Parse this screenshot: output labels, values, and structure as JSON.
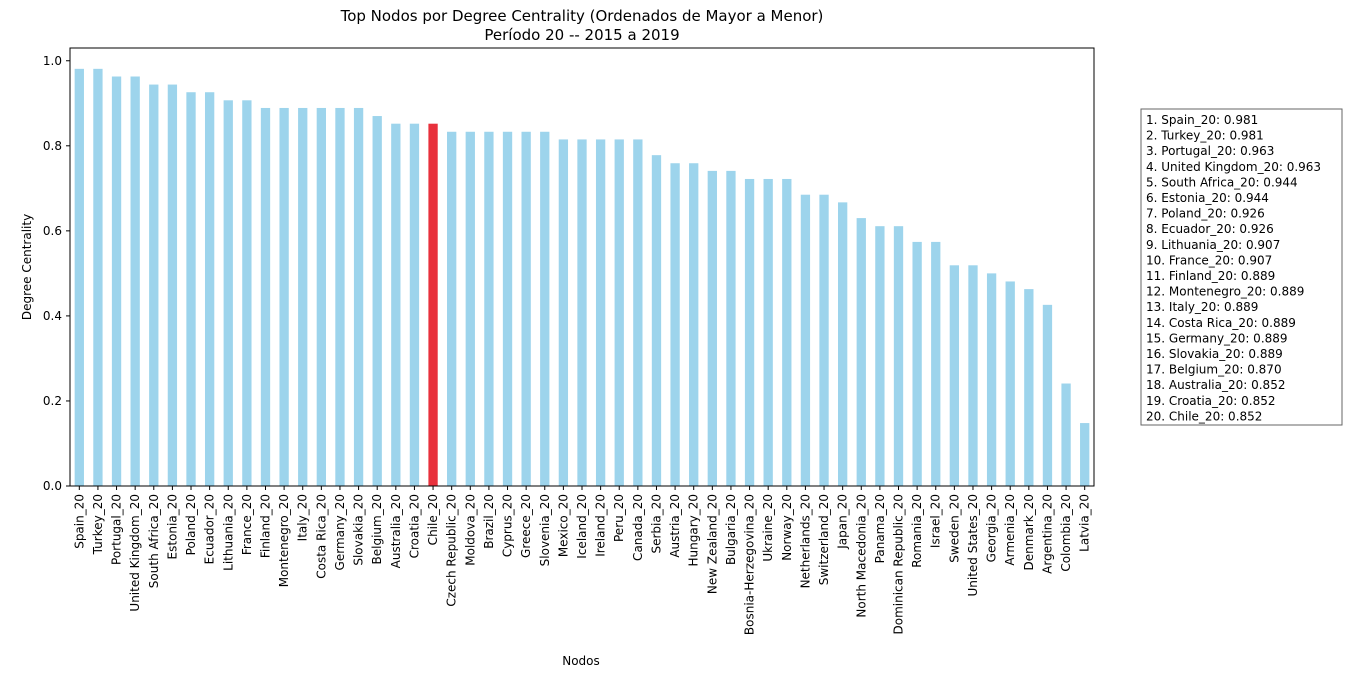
{
  "chart_data": {
    "type": "bar",
    "title": "Top Nodos por Degree Centrality (Ordenados de Mayor a Menor)",
    "subtitle": "Período 20 -- 2015 a 2019",
    "xlabel": "Nodos",
    "ylabel": "Degree Centrality",
    "ylim": [
      0,
      1.03
    ],
    "yticks": [
      "0.0",
      "0.2",
      "0.4",
      "0.6",
      "0.8",
      "1.0"
    ],
    "bar_color": "#9dd4ec",
    "highlight_color": "#e8313c",
    "highlight_category": "Chile_20",
    "categories": [
      "Spain_20",
      "Turkey_20",
      "Portugal_20",
      "United Kingdom_20",
      "South Africa_20",
      "Estonia_20",
      "Poland_20",
      "Ecuador_20",
      "Lithuania_20",
      "France_20",
      "Finland_20",
      "Montenegro_20",
      "Italy_20",
      "Costa Rica_20",
      "Germany_20",
      "Slovakia_20",
      "Belgium_20",
      "Australia_20",
      "Croatia_20",
      "Chile_20",
      "Czech Republic_20",
      "Moldova_20",
      "Brazil_20",
      "Cyprus_20",
      "Greece_20",
      "Slovenia_20",
      "Mexico_20",
      "Iceland_20",
      "Ireland_20",
      "Peru_20",
      "Canada_20",
      "Serbia_20",
      "Austria_20",
      "Hungary_20",
      "New Zealand_20",
      "Bulgaria_20",
      "Bosnia-Herzegovina_20",
      "Ukraine_20",
      "Norway_20",
      "Netherlands_20",
      "Switzerland_20",
      "Japan_20",
      "North Macedonia_20",
      "Panama_20",
      "Dominican Republic_20",
      "Romania_20",
      "Israel_20",
      "Sweden_20",
      "United States_20",
      "Georgia_20",
      "Armenia_20",
      "Denmark_20",
      "Argentina_20",
      "Colombia_20",
      "Latvia_20"
    ],
    "values": [
      0.981,
      0.981,
      0.963,
      0.963,
      0.944,
      0.944,
      0.926,
      0.926,
      0.907,
      0.907,
      0.889,
      0.889,
      0.889,
      0.889,
      0.889,
      0.889,
      0.87,
      0.852,
      0.852,
      0.852,
      0.833,
      0.833,
      0.833,
      0.833,
      0.833,
      0.833,
      0.815,
      0.815,
      0.815,
      0.815,
      0.815,
      0.778,
      0.759,
      0.759,
      0.741,
      0.741,
      0.722,
      0.722,
      0.722,
      0.685,
      0.685,
      0.667,
      0.63,
      0.611,
      0.611,
      0.574,
      0.574,
      0.519,
      0.519,
      0.5,
      0.481,
      0.463,
      0.426,
      0.241,
      0.148
    ],
    "legend_placement": "right",
    "legend": [
      "1. Spain_20: 0.981",
      "2. Turkey_20: 0.981",
      "3. Portugal_20: 0.963",
      "4. United Kingdom_20: 0.963",
      "5. South Africa_20: 0.944",
      "6. Estonia_20: 0.944",
      "7. Poland_20: 0.926",
      "8. Ecuador_20: 0.926",
      "9. Lithuania_20: 0.907",
      "10. France_20: 0.907",
      "11. Finland_20: 0.889",
      "12. Montenegro_20: 0.889",
      "13. Italy_20: 0.889",
      "14. Costa Rica_20: 0.889",
      "15. Germany_20: 0.889",
      "16. Slovakia_20: 0.889",
      "17. Belgium_20: 0.870",
      "18. Australia_20: 0.852",
      "19. Croatia_20: 0.852",
      "20. Chile_20: 0.852"
    ],
    "grid": false
  }
}
